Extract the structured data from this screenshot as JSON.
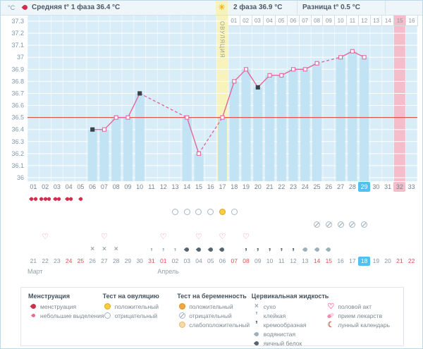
{
  "header": {
    "avg_label": "Средняя t° 1 фаза 36.4 °C",
    "phase2_label": "2 фаза 36.9 °C",
    "diff_label": "Разница t° 0.5 °C",
    "y_unit": "°C"
  },
  "ovulation_band_label": "ОВУЛЯЦИЯ",
  "dpo_row": [
    {
      "label": "01"
    },
    {
      "label": "02"
    },
    {
      "label": "03"
    },
    {
      "label": "04"
    },
    {
      "label": "05"
    },
    {
      "label": "06"
    },
    {
      "label": "07"
    },
    {
      "label": "08"
    },
    {
      "label": "09"
    },
    {
      "label": "10"
    },
    {
      "label": "11"
    },
    {
      "label": "12"
    },
    {
      "label": "13"
    },
    {
      "label": "14"
    },
    {
      "label": "15",
      "highlight": true
    },
    {
      "label": "16"
    }
  ],
  "cycle_days": [
    "01",
    "02",
    "03",
    "04",
    "05",
    "06",
    "07",
    "08",
    "09",
    "10",
    "11",
    "12",
    "13",
    "14",
    "15",
    "16",
    "17",
    "18",
    "19",
    "20",
    "21",
    "22",
    "23",
    "24",
    "25",
    "26",
    "27",
    "28",
    "29",
    "30",
    "31",
    "32",
    "33"
  ],
  "chart_data": {
    "type": "line",
    "ylabel": "°C",
    "ylim": [
      36.0,
      37.3
    ],
    "ytick_step": 0.1,
    "days": 33,
    "coverline": 36.5,
    "ovulation_day": 17,
    "period_day": 32,
    "today_day": 29,
    "temps": {
      "6": 36.4,
      "7": 36.4,
      "8": 36.5,
      "9": 36.5,
      "10": 36.7,
      "14": 36.5,
      "15": 36.2,
      "17": 36.5,
      "18": 36.8,
      "19": 36.9,
      "20": 36.75,
      "21": 36.85,
      "22": 36.85,
      "23": 36.9,
      "24": 36.9,
      "25": 36.95,
      "27": 37.0,
      "28": 37.05,
      "29": 37.0
    },
    "black_marker_days": [
      6,
      10,
      20
    ]
  },
  "tracking": {
    "menstruation": [
      {
        "day": 1,
        "drops": 2
      },
      {
        "day": 2,
        "drops": 3
      },
      {
        "day": 3,
        "drops": 2
      },
      {
        "day": 4,
        "drops": 2
      },
      {
        "day": 5,
        "drops": 1
      }
    ],
    "ovulation_tests": [
      {
        "day": 13,
        "result": "negative"
      },
      {
        "day": 14,
        "result": "negative"
      },
      {
        "day": 15,
        "result": "negative"
      },
      {
        "day": 16,
        "result": "negative"
      },
      {
        "day": 17,
        "result": "positive"
      },
      {
        "day": 18,
        "result": "negative"
      }
    ],
    "pregnancy_tests": [
      {
        "day": 25,
        "result": "negative"
      },
      {
        "day": 26,
        "result": "negative"
      },
      {
        "day": 27,
        "result": "negative"
      },
      {
        "day": 28,
        "result": "negative"
      },
      {
        "day": 29,
        "result": "negative"
      }
    ],
    "intercourse_days": [
      2,
      7,
      12,
      15,
      17,
      19
    ],
    "cervical_fluid": [
      {
        "day": 6,
        "type": "dry"
      },
      {
        "day": 7,
        "type": "dry"
      },
      {
        "day": 8,
        "type": "dry"
      },
      {
        "day": 11,
        "type": "sticky"
      },
      {
        "day": 12,
        "type": "sticky"
      },
      {
        "day": 13,
        "type": "sticky"
      },
      {
        "day": 14,
        "type": "eggwhite"
      },
      {
        "day": 15,
        "type": "eggwhite"
      },
      {
        "day": 16,
        "type": "eggwhite"
      },
      {
        "day": 17,
        "type": "eggwhite"
      },
      {
        "day": 19,
        "type": "creamy"
      },
      {
        "day": 20,
        "type": "creamy"
      },
      {
        "day": 21,
        "type": "creamy"
      },
      {
        "day": 22,
        "type": "creamy"
      },
      {
        "day": 23,
        "type": "creamy"
      },
      {
        "day": 24,
        "type": "watery"
      },
      {
        "day": 25,
        "type": "watery"
      },
      {
        "day": 26,
        "type": "watery"
      }
    ]
  },
  "calendar": {
    "dates": [
      {
        "label": "21"
      },
      {
        "label": "22"
      },
      {
        "label": "23"
      },
      {
        "label": "24",
        "red": true
      },
      {
        "label": "25",
        "red": true
      },
      {
        "label": "26"
      },
      {
        "label": "27"
      },
      {
        "label": "28"
      },
      {
        "label": "29"
      },
      {
        "label": "30"
      },
      {
        "label": "31",
        "red": true
      },
      {
        "label": "01",
        "red": true
      },
      {
        "label": "02"
      },
      {
        "label": "03"
      },
      {
        "label": "04"
      },
      {
        "label": "05"
      },
      {
        "label": "06"
      },
      {
        "label": "07",
        "red": true
      },
      {
        "label": "08",
        "red": true
      },
      {
        "label": "09"
      },
      {
        "label": "10"
      },
      {
        "label": "11"
      },
      {
        "label": "12"
      },
      {
        "label": "13"
      },
      {
        "label": "14",
        "red": true
      },
      {
        "label": "15",
        "red": true
      },
      {
        "label": "16"
      },
      {
        "label": "17"
      },
      {
        "label": "18",
        "today": true
      },
      {
        "label": "19"
      },
      {
        "label": "20"
      },
      {
        "label": "21",
        "red": true
      },
      {
        "label": "22",
        "red": true
      }
    ],
    "months": [
      {
        "label": "Март",
        "start_index": 0
      },
      {
        "label": "Апрель",
        "start_index": 11
      }
    ]
  },
  "legend": {
    "groups": [
      {
        "title": "Менструация",
        "items": [
          {
            "icon": "drop-red",
            "label": "менструация"
          },
          {
            "icon": "drop-pink-sm",
            "label": "небольшие выделения"
          }
        ]
      },
      {
        "title": "Тест на овуляцию",
        "items": [
          {
            "icon": "circle-pos-ovu",
            "label": "положительный"
          },
          {
            "icon": "circle-neg",
            "label": "отрицательный"
          }
        ]
      },
      {
        "title": "Тест на беременность",
        "items": [
          {
            "icon": "circle-pos-preg",
            "label": "положительный"
          },
          {
            "icon": "circle-neg-slash",
            "label": "отрицательный"
          },
          {
            "icon": "circle-weak",
            "label": "слабоположительный"
          }
        ]
      },
      {
        "title": "Цервикальная жидкость",
        "items": [
          {
            "icon": "x-dry",
            "label": "сухо"
          },
          {
            "icon": "comma-light",
            "label": "клейкая"
          },
          {
            "icon": "comma-dark",
            "label": "кремообразная"
          },
          {
            "icon": "drop-gray",
            "label": "водянистая"
          },
          {
            "icon": "drop-dark",
            "label": "яичный белок"
          }
        ]
      },
      {
        "title": "",
        "items": [
          {
            "icon": "heart",
            "label": "половой акт"
          },
          {
            "icon": "pill",
            "label": "прием лекарств"
          },
          {
            "icon": "moon",
            "label": "лунный календарь"
          }
        ]
      }
    ]
  },
  "colors": {
    "chart_bg": "#d9edf8",
    "bar": "#c1e3f3",
    "grid": "#ffffff",
    "coverline": "#e0564f",
    "temp_line": "#e4659d",
    "ovulation_band": "#f8f3bb",
    "period_band": "#f5bdca",
    "today_highlight": "#4fc0ef",
    "weekend_red": "#e05252"
  },
  "icon_glyphs": {
    "heart": "♡",
    "dry": "×",
    "comma": "’",
    "moon": "☾",
    "sun": "☀"
  }
}
